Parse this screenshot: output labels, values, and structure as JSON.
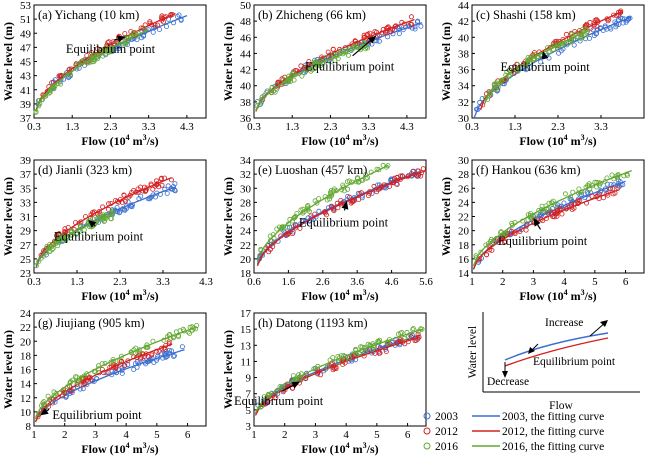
{
  "figure": {
    "flow_label": "Flow (10",
    "flow_sup": "4",
    "flow_unit": " m",
    "flow_sup2": "3",
    "flow_tail": "/s)",
    "water_level_label": "Water level (m)",
    "equilibrium_label": "Equilibrium point"
  },
  "colors": {
    "y2003": "#3a6fd0",
    "y2012": "#d42020",
    "y2016": "#62a832"
  },
  "legend": [
    {
      "marker": "2003",
      "line": "2003, the fitting curve",
      "key": "y2003"
    },
    {
      "marker": "2012",
      "line": "2012, the fitting curve",
      "key": "y2012"
    },
    {
      "marker": "2016",
      "line": "2016, the fitting curve",
      "key": "y2016"
    }
  ],
  "schematic": {
    "ylabel": "Water level",
    "xlabel": "Flow",
    "increase": "Increase",
    "decrease": "Decrease",
    "equilibrium": "Equilibrium point"
  },
  "chart_data": [
    {
      "type": "scatter",
      "title": "(a) Yichang (10 km)",
      "xlabel": "Flow (10^4 m^3/s)",
      "ylabel": "Water level (m)",
      "xlim": [
        0.3,
        4.8
      ],
      "ylim": [
        37,
        53
      ],
      "xticks": [
        "0.3",
        "1.3",
        "2.3",
        "3.3",
        "4.3"
      ],
      "yticks": [
        "37",
        "39",
        "41",
        "43",
        "45",
        "47",
        "49",
        "51",
        "53"
      ],
      "equilibrium": [
        2.7,
        48.5
      ],
      "eq_label_at": [
        2.3,
        46.2
      ],
      "series": [
        {
          "year": "2003",
          "x": [
            0.35,
            4.3
          ],
          "y": [
            38.1,
            51.5
          ],
          "color": "y2003"
        },
        {
          "year": "2012",
          "x": [
            0.35,
            4.0
          ],
          "y": [
            38.0,
            51.8
          ],
          "color": "y2012"
        },
        {
          "year": "2016",
          "x": [
            0.35,
            3.3
          ],
          "y": [
            37.8,
            49.5
          ],
          "color": "y2016"
        }
      ]
    },
    {
      "type": "scatter",
      "title": "(b) Zhicheng (66 km)",
      "xlabel": "Flow (10^4 m^3/s)",
      "ylabel": "Water level (m)",
      "xlim": [
        0.3,
        4.8
      ],
      "ylim": [
        36,
        50
      ],
      "xticks": [
        "0.3",
        "1.3",
        "2.3",
        "3.3",
        "4.3"
      ],
      "yticks": [
        "36",
        "38",
        "40",
        "42",
        "44",
        "46",
        "48",
        "50"
      ],
      "equilibrium": [
        3.5,
        46.2
      ],
      "eq_label_at": [
        2.8,
        41.9
      ],
      "series": [
        {
          "year": "2003",
          "x": [
            0.35,
            4.7
          ],
          "y": [
            37.0,
            47.8
          ],
          "color": "y2003"
        },
        {
          "year": "2012",
          "x": [
            0.35,
            4.5
          ],
          "y": [
            36.8,
            48.2
          ],
          "color": "y2012"
        },
        {
          "year": "2016",
          "x": [
            0.35,
            3.3
          ],
          "y": [
            36.9,
            45.2
          ],
          "color": "y2016"
        }
      ]
    },
    {
      "type": "scatter",
      "title": "(c) Shashi (158 km)",
      "xlabel": "Flow (10^4 m^3/s)",
      "ylabel": "Water level (m)",
      "xlim": [
        0.3,
        4.3
      ],
      "ylim": [
        30,
        44
      ],
      "xticks": [
        "0.3",
        "1.3",
        "2.3",
        "3.3"
      ],
      "yticks": [
        "30",
        "32",
        "34",
        "36",
        "38",
        "40",
        "42",
        "44"
      ],
      "equilibrium": [
        1.95,
        38.3
      ],
      "eq_label_at": [
        2.0,
        35.8
      ],
      "series": [
        {
          "year": "2003",
          "x": [
            0.35,
            4.0
          ],
          "y": [
            30.0,
            42.5
          ],
          "color": "y2003"
        },
        {
          "year": "2012",
          "x": [
            0.5,
            3.8
          ],
          "y": [
            31.0,
            43.2
          ],
          "color": "y2012"
        },
        {
          "year": "2016",
          "x": [
            0.6,
            3.0
          ],
          "y": [
            31.8,
            40.8
          ],
          "color": "y2016"
        }
      ]
    },
    {
      "type": "scatter",
      "title": "(d) Jianli (323 km)",
      "xlabel": "Flow (10^4 m^3/s)",
      "ylabel": "Water level (m)",
      "xlim": [
        0.3,
        4.3
      ],
      "ylim": [
        23,
        39
      ],
      "xticks": [
        "0.3",
        "1.3",
        "2.3",
        "3.3",
        "4.3"
      ],
      "yticks": [
        "23",
        "25",
        "27",
        "29",
        "31",
        "33",
        "35",
        "37",
        "39"
      ],
      "equilibrium": [
        1.55,
        30.5
      ],
      "eq_label_at": [
        1.8,
        27.6
      ],
      "series": [
        {
          "year": "2003",
          "x": [
            0.35,
            3.6
          ],
          "y": [
            23.8,
            35.2
          ],
          "color": "y2003"
        },
        {
          "year": "2012",
          "x": [
            0.35,
            3.5
          ],
          "y": [
            24.0,
            36.5
          ],
          "color": "y2012"
        },
        {
          "year": "2016",
          "x": [
            0.35,
            2.2
          ],
          "y": [
            24.1,
            31.5
          ],
          "color": "y2016"
        }
      ]
    },
    {
      "type": "scatter",
      "title": "(e) Luoshan (457 km)",
      "xlabel": "Flow (10^4 m^3/s)",
      "ylabel": "Water level (m)",
      "xlim": [
        0.6,
        5.6
      ],
      "ylim": [
        18,
        34
      ],
      "xticks": [
        "0.6",
        "1.6",
        "2.6",
        "3.6",
        "4.6",
        "5.6"
      ],
      "yticks": [
        "18",
        "20",
        "22",
        "24",
        "26",
        "28",
        "30",
        "32",
        "34"
      ],
      "equilibrium": [
        3.3,
        28.2
      ],
      "eq_label_at": [
        3.2,
        24.6
      ],
      "series": [
        {
          "year": "2003",
          "x": [
            0.7,
            5.4
          ],
          "y": [
            19.2,
            32.3
          ],
          "color": "y2003"
        },
        {
          "year": "2012",
          "x": [
            0.7,
            5.6
          ],
          "y": [
            19.0,
            32.5
          ],
          "color": "y2012"
        },
        {
          "year": "2016",
          "x": [
            0.7,
            4.5
          ],
          "y": [
            19.5,
            33.2
          ],
          "color": "y2016"
        }
      ]
    },
    {
      "type": "scatter",
      "title": "(f) Hankou (636 km)",
      "xlabel": "Flow (10^4 m^3/s)",
      "ylabel": "Water level (m)",
      "xlim": [
        1,
        6.6
      ],
      "ylim": [
        14,
        30
      ],
      "xticks": [
        "1",
        "2",
        "3",
        "4",
        "5",
        "6"
      ],
      "yticks": [
        "14",
        "16",
        "18",
        "20",
        "22",
        "24",
        "26",
        "28",
        "30"
      ],
      "equilibrium": [
        3.0,
        21.8
      ],
      "eq_label_at": [
        3.3,
        18.0
      ],
      "series": [
        {
          "year": "2003",
          "x": [
            1.05,
            6.0
          ],
          "y": [
            14.5,
            27.0
          ],
          "color": "y2003"
        },
        {
          "year": "2012",
          "x": [
            1.05,
            5.8
          ],
          "y": [
            14.6,
            25.8
          ],
          "color": "y2012"
        },
        {
          "year": "2016",
          "x": [
            1.05,
            6.2
          ],
          "y": [
            15.0,
            28.5
          ],
          "color": "y2016"
        }
      ]
    },
    {
      "type": "scatter",
      "title": "(g) Jiujiang (905 km)",
      "xlabel": "Flow (10^4 m^3/s)",
      "ylabel": "Water level (m)",
      "xlim": [
        1,
        6.6
      ],
      "ylim": [
        8,
        24
      ],
      "xticks": [
        "1",
        "2",
        "3",
        "4",
        "5",
        "6"
      ],
      "yticks": [
        "8",
        "10",
        "12",
        "14",
        "16",
        "18",
        "20",
        "22",
        "24"
      ],
      "equilibrium": [
        1.2,
        9.5
      ],
      "eq_label_at": [
        1.6,
        9.0
      ],
      "series": [
        {
          "year": "2003",
          "x": [
            1.05,
            5.9
          ],
          "y": [
            8.6,
            18.8
          ],
          "color": "y2003"
        },
        {
          "year": "2012",
          "x": [
            1.05,
            5.5
          ],
          "y": [
            8.6,
            19.6
          ],
          "color": "y2012"
        },
        {
          "year": "2016",
          "x": [
            1.05,
            6.3
          ],
          "y": [
            9.0,
            22.0
          ],
          "color": "y2016"
        }
      ]
    },
    {
      "type": "scatter",
      "title": "(h) Datong (1193 km)",
      "xlabel": "Flow (10^4 m^3/s)",
      "ylabel": "Water level (m)",
      "xlim": [
        1,
        6.6
      ],
      "ylim": [
        3,
        17
      ],
      "xticks": [
        "1",
        "2",
        "3",
        "4",
        "5",
        "6"
      ],
      "yticks": [
        "3",
        "5",
        "7",
        "9",
        "11",
        "13",
        "15",
        "17"
      ],
      "equilibrium": [
        2.5,
        8.5
      ],
      "eq_label_at": [
        1.8,
        5.6
      ],
      "series": [
        {
          "year": "2003",
          "x": [
            1.05,
            6.4
          ],
          "y": [
            4.5,
            14.2
          ],
          "color": "y2003"
        },
        {
          "year": "2012",
          "x": [
            1.05,
            6.4
          ],
          "y": [
            4.3,
            14.0
          ],
          "color": "y2012"
        },
        {
          "year": "2016",
          "x": [
            1.05,
            6.5
          ],
          "y": [
            4.6,
            15.0
          ],
          "color": "y2016"
        }
      ]
    }
  ]
}
